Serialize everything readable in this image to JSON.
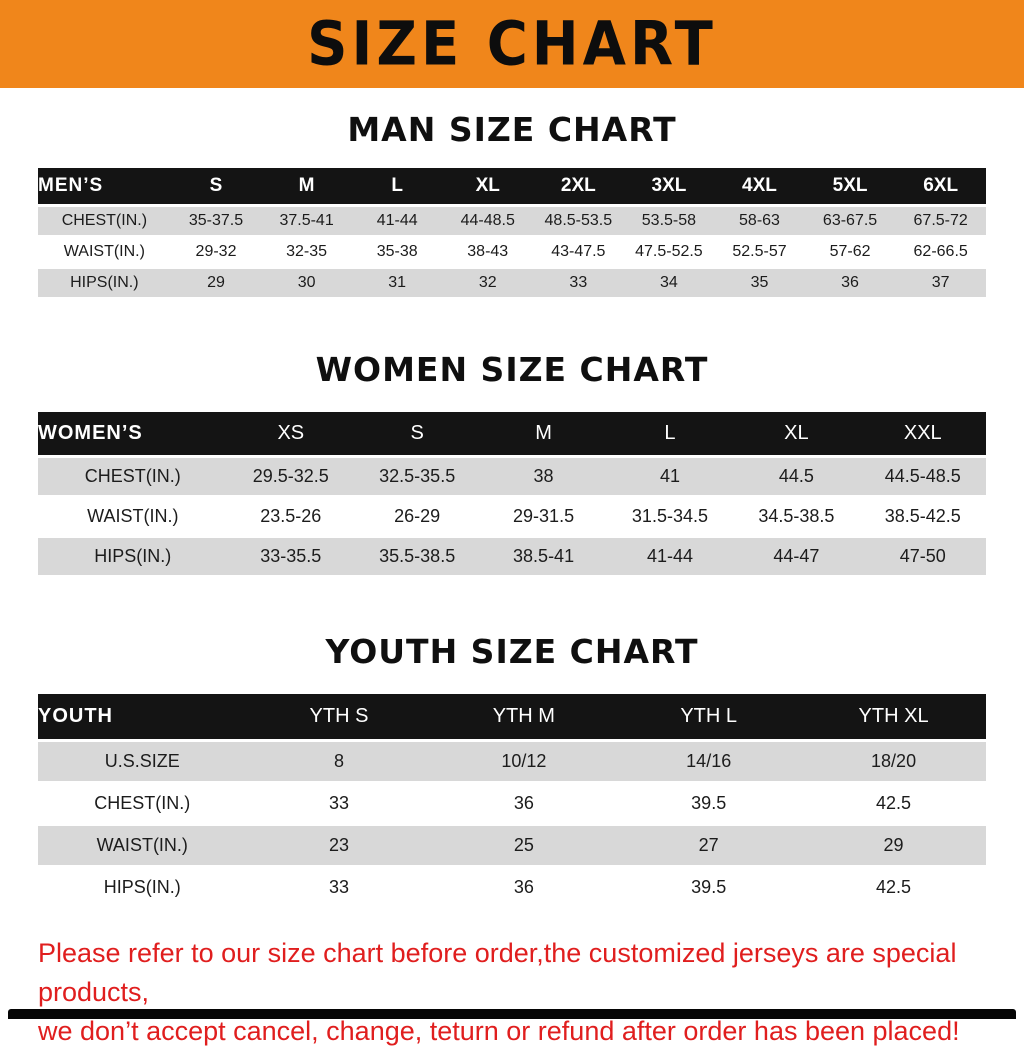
{
  "banner": {
    "title": "SIZE CHART"
  },
  "colors": {
    "banner_bg": "#f0861b",
    "header_bg": "#141414",
    "stripe": "#d8d8d8",
    "footer_text": "#e01e1e"
  },
  "sections": [
    {
      "id": "man",
      "title": "MAN SIZE CHART",
      "corner": "MEN’S",
      "columns": [
        "S",
        "M",
        "L",
        "XL",
        "2XL",
        "3XL",
        "4XL",
        "5XL",
        "6XL"
      ],
      "rows": [
        {
          "label": "CHEST(IN.)",
          "values": [
            "35-37.5",
            "37.5-41",
            "41-44",
            "44-48.5",
            "48.5-53.5",
            "53.5-58",
            "58-63",
            "63-67.5",
            "67.5-72"
          ]
        },
        {
          "label": "WAIST(IN.)",
          "values": [
            "29-32",
            "32-35",
            "35-38",
            "38-43",
            "43-47.5",
            "47.5-52.5",
            "52.5-57",
            "57-62",
            "62-66.5"
          ]
        },
        {
          "label": "HIPS(IN.)",
          "values": [
            "29",
            "30",
            "31",
            "32",
            "33",
            "34",
            "35",
            "36",
            "37"
          ]
        }
      ]
    },
    {
      "id": "women",
      "title": "WOMEN SIZE CHART",
      "corner": "WOMEN’S",
      "columns": [
        "XS",
        "S",
        "M",
        "L",
        "XL",
        "XXL"
      ],
      "rows": [
        {
          "label": "CHEST(IN.)",
          "values": [
            "29.5-32.5",
            "32.5-35.5",
            "38",
            "41",
            "44.5",
            "44.5-48.5"
          ]
        },
        {
          "label": "WAIST(IN.)",
          "values": [
            "23.5-26",
            "26-29",
            "29-31.5",
            "31.5-34.5",
            "34.5-38.5",
            "38.5-42.5"
          ]
        },
        {
          "label": "HIPS(IN.)",
          "values": [
            "33-35.5",
            "35.5-38.5",
            "38.5-41",
            "41-44",
            "44-47",
            "47-50"
          ]
        }
      ]
    },
    {
      "id": "youth",
      "title": "YOUTH SIZE CHART",
      "corner": "YOUTH",
      "columns": [
        "YTH S",
        "YTH M",
        "YTH L",
        "YTH XL"
      ],
      "rows": [
        {
          "label": "U.S.SIZE",
          "values": [
            "8",
            "10/12",
            "14/16",
            "18/20"
          ]
        },
        {
          "label": "CHEST(IN.)",
          "values": [
            "33",
            "36",
            "39.5",
            "42.5"
          ]
        },
        {
          "label": "WAIST(IN.)",
          "values": [
            "23",
            "25",
            "27",
            "29"
          ]
        },
        {
          "label": "HIPS(IN.)",
          "values": [
            "33",
            "36",
            "39.5",
            "42.5"
          ]
        }
      ]
    }
  ],
  "footer": {
    "line1": "Please refer to our size chart before order,the customized jerseys are special products,",
    "line2": "we don’t accept cancel, change, teturn or refund after order has been placed!"
  }
}
